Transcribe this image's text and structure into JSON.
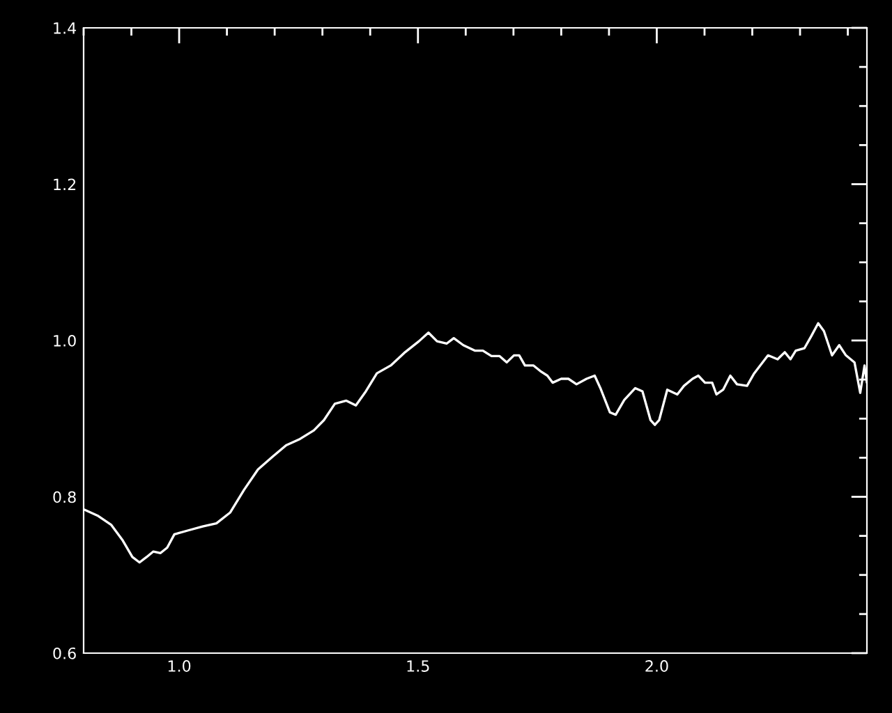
{
  "chart_data": {
    "type": "line",
    "x": [
      0.8,
      0.829,
      0.858,
      0.882,
      0.902,
      0.917,
      0.932,
      0.946,
      0.961,
      0.975,
      0.99,
      1.019,
      1.049,
      1.078,
      1.107,
      1.136,
      1.165,
      1.195,
      1.224,
      1.253,
      1.282,
      1.303,
      1.326,
      1.35,
      1.37,
      1.391,
      1.414,
      1.443,
      1.473,
      1.502,
      1.522,
      1.54,
      1.56,
      1.575,
      1.595,
      1.619,
      1.636,
      1.654,
      1.671,
      1.686,
      1.701,
      1.712,
      1.724,
      1.742,
      1.756,
      1.771,
      1.782,
      1.8,
      1.815,
      1.832,
      1.853,
      1.87,
      1.882,
      1.902,
      1.914,
      1.932,
      1.955,
      1.97,
      1.987,
      1.996,
      2.005,
      2.022,
      2.043,
      2.057,
      2.075,
      2.087,
      2.101,
      2.116,
      2.125,
      2.139,
      2.154,
      2.168,
      2.189,
      2.204,
      2.233,
      2.253,
      2.268,
      2.28,
      2.291,
      2.309,
      2.323,
      2.338,
      2.35,
      2.367,
      2.382,
      2.396,
      2.414,
      2.426,
      2.435,
      2.44
    ],
    "series": [
      {
        "color": "#ffffff",
        "values": [
          0.784,
          0.776,
          0.764,
          0.744,
          0.723,
          0.716,
          0.723,
          0.73,
          0.728,
          0.735,
          0.752,
          0.757,
          0.762,
          0.766,
          0.78,
          0.809,
          0.835,
          0.851,
          0.866,
          0.874,
          0.885,
          0.898,
          0.919,
          0.923,
          0.917,
          0.935,
          0.958,
          0.968,
          0.985,
          0.999,
          1.01,
          0.999,
          0.996,
          1.003,
          0.994,
          0.987,
          0.987,
          0.98,
          0.98,
          0.972,
          0.981,
          0.981,
          0.968,
          0.968,
          0.961,
          0.955,
          0.946,
          0.951,
          0.951,
          0.944,
          0.951,
          0.955,
          0.939,
          0.908,
          0.905,
          0.924,
          0.939,
          0.935,
          0.898,
          0.892,
          0.898,
          0.937,
          0.931,
          0.942,
          0.951,
          0.955,
          0.946,
          0.946,
          0.931,
          0.937,
          0.955,
          0.944,
          0.942,
          0.958,
          0.981,
          0.976,
          0.985,
          0.976,
          0.987,
          0.99,
          1.005,
          1.022,
          1.012,
          0.981,
          0.994,
          0.981,
          0.972,
          0.933,
          0.968,
          0.946
        ]
      }
    ],
    "xlim": [
      0.8,
      2.44
    ],
    "ylim": [
      0.6,
      1.4
    ],
    "xticks": [
      {
        "value": 1.0,
        "label": "1.0"
      },
      {
        "value": 1.5,
        "label": "1.5"
      },
      {
        "value": 2.0,
        "label": "2.0"
      }
    ],
    "yticks": [
      {
        "value": 0.6,
        "label": "0.6"
      },
      {
        "value": 0.8,
        "label": "0.8"
      },
      {
        "value": 1.0,
        "label": "1.0"
      },
      {
        "value": 1.2,
        "label": "1.2"
      },
      {
        "value": 1.4,
        "label": "1.4"
      }
    ],
    "grid": false,
    "legend": false,
    "marker": "none",
    "line_style": "solid"
  }
}
